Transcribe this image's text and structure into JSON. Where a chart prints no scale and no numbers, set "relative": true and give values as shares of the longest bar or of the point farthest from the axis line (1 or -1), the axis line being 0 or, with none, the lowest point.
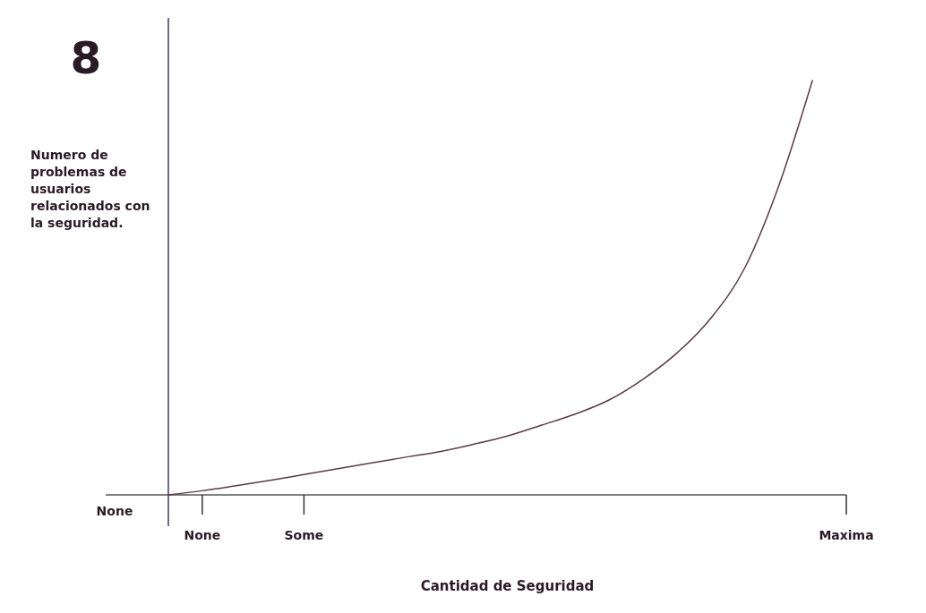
{
  "chart_data": {
    "type": "line",
    "relative": true,
    "xlabel": "Cantidad de Seguridad",
    "ylabel": "Numero de problemas de usuarios relacionados con la seguridad.",
    "annotations": [
      "None",
      "8"
    ],
    "categories": [
      null,
      "None",
      null,
      null,
      "Some",
      null,
      null,
      null,
      null,
      null,
      null,
      null,
      null,
      null,
      null,
      null,
      null,
      null,
      null,
      null,
      "Maxima"
    ],
    "series": [
      {
        "color": "#5a3a45",
        "values": [
          0,
          0.01,
          0.022,
          0.035,
          0.049,
          0.063,
          0.077,
          0.091,
          0.104,
          0.122,
          0.142,
          0.168,
          0.195,
          0.229,
          0.279,
          0.342,
          0.426,
          0.547,
          0.744,
          1,
          null
        ]
      }
    ]
  }
}
